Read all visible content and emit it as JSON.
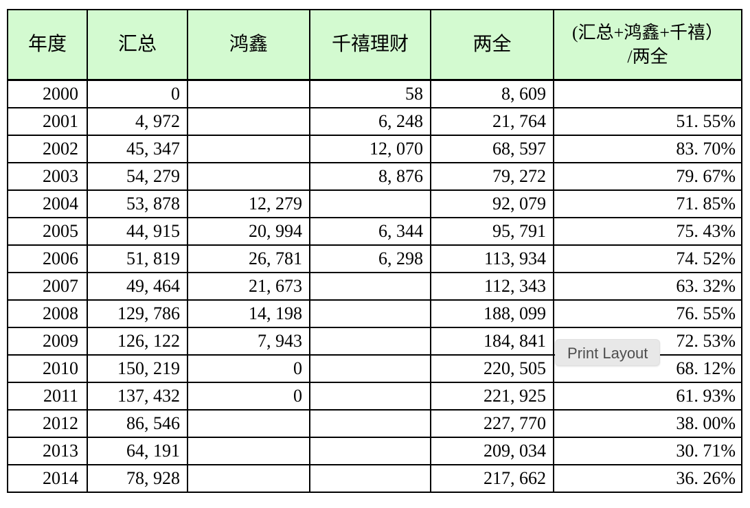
{
  "colors": {
    "header_bg": "#d3fad0",
    "table_border": "#000000",
    "tooltip_bg": "#e8e8e8",
    "tooltip_text": "#4d4d4d"
  },
  "tooltip": {
    "label": "Print Layout"
  },
  "table": {
    "columns": [
      {
        "label": "年度"
      },
      {
        "label": "汇总"
      },
      {
        "label": "鸿鑫"
      },
      {
        "label": "千禧理财"
      },
      {
        "label": "两全"
      },
      {
        "label": "(汇总+鸿鑫+千禧）\n/两全"
      }
    ],
    "rows": [
      [
        "2000",
        "0",
        "",
        "58",
        "8, 609",
        ""
      ],
      [
        "2001",
        "4, 972",
        "",
        "6, 248",
        "21, 764",
        "51. 55%"
      ],
      [
        "2002",
        "45, 347",
        "",
        "12, 070",
        "68, 597",
        "83. 70%"
      ],
      [
        "2003",
        "54, 279",
        "",
        "8, 876",
        "79, 272",
        "79. 67%"
      ],
      [
        "2004",
        "53, 878",
        "12, 279",
        "",
        "92, 079",
        "71. 85%"
      ],
      [
        "2005",
        "44, 915",
        "20, 994",
        "6, 344",
        "95, 791",
        "75. 43%"
      ],
      [
        "2006",
        "51, 819",
        "26, 781",
        "6, 298",
        "113, 934",
        "74. 52%"
      ],
      [
        "2007",
        "49, 464",
        "21, 673",
        "",
        "112, 343",
        "63. 32%"
      ],
      [
        "2008",
        "129, 786",
        "14, 198",
        "",
        "188, 099",
        "76. 55%"
      ],
      [
        "2009",
        "126, 122",
        "7, 943",
        "",
        "184, 841",
        "72. 53%"
      ],
      [
        "2010",
        "150, 219",
        "0",
        "",
        "220, 505",
        "68. 12%"
      ],
      [
        "2011",
        "137, 432",
        "0",
        "",
        "221, 925",
        "61. 93%"
      ],
      [
        "2012",
        "86, 546",
        "",
        "",
        "227, 770",
        "38. 00%"
      ],
      [
        "2013",
        "64, 191",
        "",
        "",
        "209, 034",
        "30. 71%"
      ],
      [
        "2014",
        "78, 928",
        "",
        "",
        "217, 662",
        "36. 26%"
      ]
    ]
  }
}
